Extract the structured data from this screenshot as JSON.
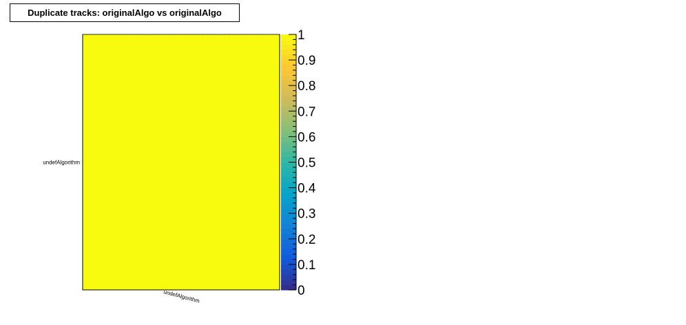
{
  "chart_data": {
    "type": "heatmap",
    "title": "Duplicate tracks: originalAlgo vs originalAlgo",
    "x_categories": [
      "undefAlgorithm"
    ],
    "y_categories": [
      "undefAlgorithm"
    ],
    "values": [
      [
        1
      ]
    ],
    "zlim": [
      0,
      1
    ],
    "colorbar_ticks": [
      "0",
      "0.1",
      "0.2",
      "0.3",
      "0.4",
      "0.5",
      "0.6",
      "0.7",
      "0.8",
      "0.9",
      "1"
    ],
    "palette": [
      "#352a86",
      "#0f5cdd",
      "#1481d6",
      "#06a4ca",
      "#2eb7a4",
      "#87bf77",
      "#d1bb59",
      "#fec832",
      "#f9fb0e"
    ],
    "cell_color": "#f9fb0e"
  }
}
